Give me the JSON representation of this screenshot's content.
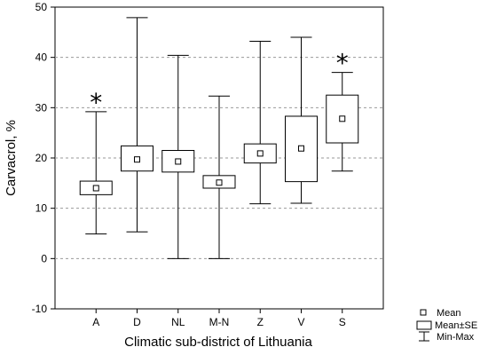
{
  "chart_data": {
    "type": "boxplot",
    "title": "",
    "xlabel": "Climatic sub-district of Lithuania",
    "ylabel": "Carvacrol, %",
    "ylim": [
      -10,
      50
    ],
    "yticks": [
      -10,
      0,
      10,
      20,
      30,
      40,
      50
    ],
    "grid": "horizontal-dashed",
    "categories": [
      "A",
      "D",
      "NL",
      "M-N",
      "Z",
      "V",
      "S"
    ],
    "series": [
      {
        "mean": 14.0,
        "se_low": 12.7,
        "se_high": 15.4,
        "min": 4.9,
        "max": 29.2,
        "marker": "*"
      },
      {
        "mean": 19.7,
        "se_low": 17.4,
        "se_high": 22.4,
        "min": 5.3,
        "max": 47.9,
        "marker": ""
      },
      {
        "mean": 19.3,
        "se_low": 17.2,
        "se_high": 21.5,
        "min": 0.0,
        "max": 40.4,
        "marker": ""
      },
      {
        "mean": 15.1,
        "se_low": 14.0,
        "se_high": 16.5,
        "min": 0.0,
        "max": 32.3,
        "marker": ""
      },
      {
        "mean": 20.9,
        "se_low": 19.0,
        "se_high": 22.8,
        "min": 10.9,
        "max": 43.2,
        "marker": ""
      },
      {
        "mean": 21.9,
        "se_low": 15.3,
        "se_high": 28.3,
        "min": 11.0,
        "max": 44.0,
        "marker": ""
      },
      {
        "mean": 27.8,
        "se_low": 23.0,
        "se_high": 32.5,
        "min": 17.4,
        "max": 37.0,
        "marker": "*"
      }
    ],
    "legend": {
      "position": "bottom-right",
      "items": [
        "Mean",
        "Mean±SE",
        "Min-Max"
      ]
    }
  }
}
